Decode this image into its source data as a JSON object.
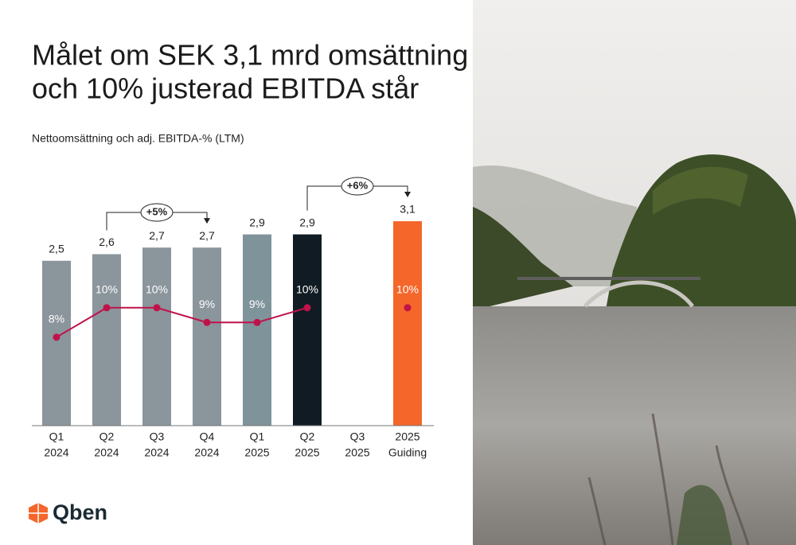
{
  "title": [
    "Målet om SEK 3,1 mrd omsättning",
    "och 10% justerad EBITDA står"
  ],
  "logo": "Qben",
  "chart_data": {
    "type": "bar",
    "subtitle": "Nettoomsättning och adj. EBITDA-% (LTM)",
    "categories": [
      [
        "Q1",
        "2024"
      ],
      [
        "Q2",
        "2024"
      ],
      [
        "Q3",
        "2024"
      ],
      [
        "Q4",
        "2024"
      ],
      [
        "Q1",
        "2025"
      ],
      [
        "Q2",
        "2025"
      ],
      [
        "Q3",
        "2025"
      ],
      [
        "2025",
        "Guiding"
      ]
    ],
    "values": [
      2.5,
      2.6,
      2.7,
      2.7,
      2.9,
      2.9,
      null,
      3.1
    ],
    "value_labels": [
      "2,5",
      "2,6",
      "2,7",
      "2,7",
      "2,9",
      "2,9",
      null,
      "3,1"
    ],
    "colors": [
      "#8b959c",
      "#8b959c",
      "#8b959c",
      "#8b959c",
      "#7f939a",
      "#101b23",
      null,
      "#f4662a"
    ],
    "ylim": [
      0,
      3.8
    ],
    "line": {
      "values": [
        8,
        10,
        10,
        9,
        9,
        10,
        null,
        10
      ],
      "value_labels": [
        "8%",
        "10%",
        "10%",
        "9%",
        "9%",
        "10%",
        null,
        "10%"
      ],
      "color": "#c0124a"
    },
    "y2lim": [
      2,
      19
    ],
    "annotations": [
      "+5%",
      "+6%"
    ]
  }
}
